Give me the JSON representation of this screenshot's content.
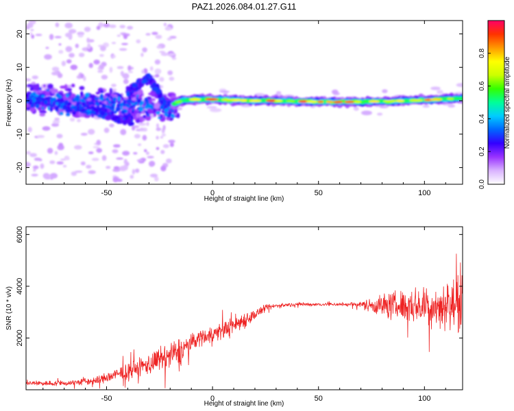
{
  "title": "PAZ1.2026.084.01.27.G11",
  "chart_data": [
    {
      "type": "heatmap",
      "xlabel": "Height of straight line (km)",
      "ylabel": "Frequency (Hz)",
      "xlim": [
        -88,
        118
      ],
      "ylim": [
        -25,
        24
      ],
      "xticks": [
        -50,
        0,
        50,
        100
      ],
      "yticks": [
        -20,
        -10,
        0,
        10,
        20
      ],
      "xtick_labels": [
        "-50",
        "0",
        "50",
        "100"
      ],
      "ytick_labels": [
        "-20",
        "-10",
        "0",
        "10",
        "20"
      ],
      "grid": false,
      "colorbar": {
        "label": "Normalized spectral amplitude",
        "range": [
          0,
          1
        ],
        "ticks": [
          0.0,
          0.2,
          0.4,
          0.6,
          0.8
        ],
        "tick_labels": [
          "0.0",
          "0.2",
          "0.4",
          "0.6",
          "0.8"
        ],
        "colors": [
          "#ffffff",
          "#d9b3ff",
          "#9933ff",
          "#3300ff",
          "#0066ff",
          "#00ccff",
          "#00ff99",
          "#33ff00",
          "#ccff00",
          "#ffff00",
          "#ff9900",
          "#ff3300",
          "#ff0066"
        ]
      },
      "main_track": {
        "description_points": [
          [
            -18,
            -1.0
          ],
          [
            -15,
            0.0
          ],
          [
            -10,
            0.3
          ],
          [
            -5,
            0.5
          ],
          [
            0,
            0.4
          ],
          [
            10,
            0.2
          ],
          [
            20,
            0.0
          ],
          [
            30,
            0.0
          ],
          [
            40,
            -0.2
          ],
          [
            50,
            -0.3
          ],
          [
            60,
            -0.4
          ],
          [
            70,
            -0.3
          ],
          [
            80,
            -0.2
          ],
          [
            90,
            0.0
          ],
          [
            100,
            0.2
          ],
          [
            110,
            0.5
          ],
          [
            118,
            0.8
          ]
        ],
        "peak_amplitude": 0.95
      },
      "secondary_track": {
        "points": [
          [
            -40,
            2.5
          ],
          [
            -35,
            5.0
          ],
          [
            -30,
            6.5
          ],
          [
            -28,
            5.5
          ],
          [
            -25,
            2.0
          ],
          [
            -22,
            -2.0
          ],
          [
            -20,
            -4.0
          ]
        ]
      },
      "tertiary_track": {
        "points": [
          [
            -88,
            1.5
          ],
          [
            -75,
            -0.5
          ],
          [
            -65,
            -2.5
          ],
          [
            -55,
            -3.5
          ],
          [
            -45,
            -5.0
          ],
          [
            -38,
            -6.5
          ]
        ]
      }
    },
    {
      "type": "line",
      "xlabel": "Height of straight line (km)",
      "ylabel": "SNR (10 * v/v)",
      "xlim": [
        -88,
        118
      ],
      "ylim": [
        0,
        6300
      ],
      "xticks": [
        -50,
        0,
        50,
        100
      ],
      "yticks": [
        2000,
        4000,
        6000
      ],
      "xtick_labels": [
        "-50",
        "0",
        "50",
        "100"
      ],
      "ytick_labels": [
        "2000",
        "4000",
        "6000"
      ],
      "grid": false,
      "color": "#ee2222",
      "trend": {
        "x": [
          -88,
          -70,
          -55,
          -40,
          -30,
          -20,
          -15,
          -10,
          -5,
          0,
          5,
          10,
          15,
          20,
          25,
          30,
          40,
          50,
          60,
          70,
          80,
          90,
          100,
          110,
          118
        ],
        "y": [
          250,
          250,
          350,
          700,
          1000,
          1300,
          1500,
          1850,
          2050,
          2150,
          2300,
          2500,
          2700,
          2900,
          3150,
          3250,
          3300,
          3300,
          3300,
          3300,
          3250,
          3250,
          3250,
          3250,
          3300
        ],
        "noise": [
          150,
          150,
          250,
          450,
          600,
          800,
          800,
          450,
          500,
          500,
          500,
          600,
          500,
          300,
          200,
          120,
          100,
          100,
          100,
          150,
          700,
          900,
          1100,
          1300,
          1500
        ]
      }
    }
  ]
}
